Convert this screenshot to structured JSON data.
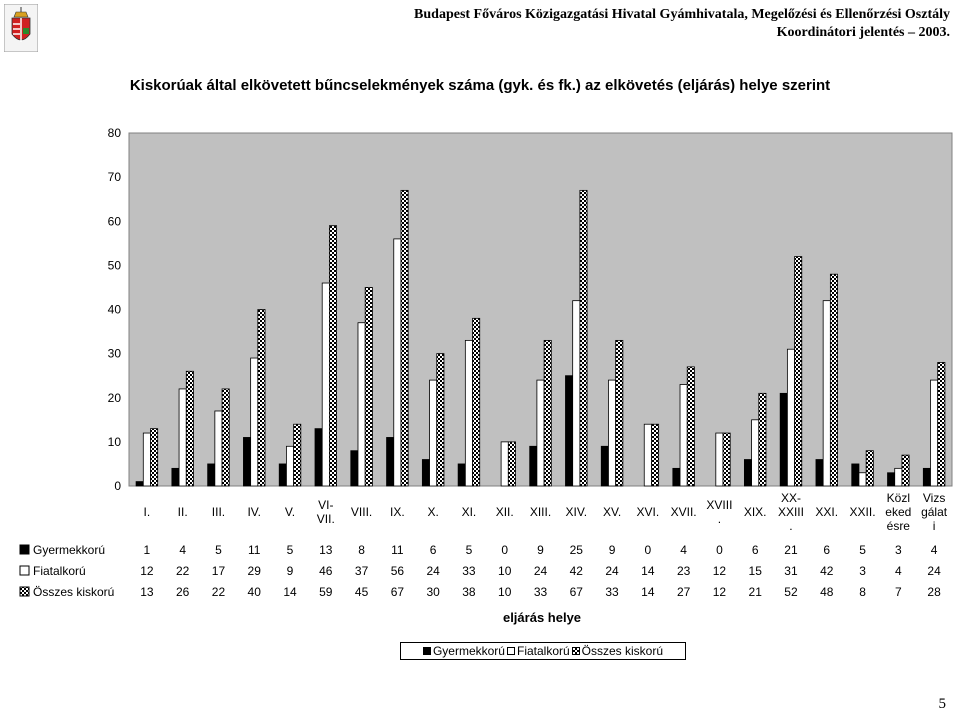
{
  "header": {
    "org_line1": "Budapest Főváros Közigazgatási Hivatal Gyámhivatala, Megelőzési és Ellenőrzési Osztály",
    "org_line2": "Koordinátori jelentés – 2003."
  },
  "page_number": "5",
  "chart_data": {
    "type": "bar",
    "title": "Kiskorúak által elkövetett bűncselekmények száma (gyk. és fk.) az elkövetés (eljárás) helye szerint",
    "xlabel": "eljárás helye",
    "ylabel": "",
    "ylim": [
      0,
      80
    ],
    "yticks": [
      0,
      10,
      20,
      30,
      40,
      50,
      60,
      70,
      80
    ],
    "grid": false,
    "legend_position": "bottom",
    "categories": [
      "I.",
      "II.",
      "III.",
      "IV.",
      "V.",
      "VI-VII.",
      "VIII.",
      "IX.",
      "X.",
      "XI.",
      "XII.",
      "XIII.",
      "XIV.",
      "XV.",
      "XVI.",
      "XVII.",
      "XVIII.",
      "XIX.",
      "XX-XXIII.",
      "XXI.",
      "XXII.",
      "Közlekedésre",
      "Vizsgálati"
    ],
    "category_lines": [
      [
        "I."
      ],
      [
        "II."
      ],
      [
        "III."
      ],
      [
        "IV."
      ],
      [
        "V."
      ],
      [
        "VI-",
        "VII."
      ],
      [
        "VIII."
      ],
      [
        "IX."
      ],
      [
        "X."
      ],
      [
        "XI."
      ],
      [
        "XII."
      ],
      [
        "XIII."
      ],
      [
        "XIV."
      ],
      [
        "XV."
      ],
      [
        "XVI."
      ],
      [
        "XVII."
      ],
      [
        "XVIII",
        "."
      ],
      [
        "XIX."
      ],
      [
        "XX-",
        "XXIII",
        "."
      ],
      [
        "XXI."
      ],
      [
        "XXII."
      ],
      [
        "Közl",
        "eked",
        "ésre"
      ],
      [
        "Vizs",
        "gálat",
        "i"
      ]
    ],
    "series": [
      {
        "name": "Gyermekkorú",
        "pattern": "black",
        "values": [
          1,
          4,
          5,
          11,
          5,
          13,
          8,
          11,
          6,
          5,
          0,
          9,
          25,
          9,
          0,
          4,
          0,
          6,
          21,
          6,
          5,
          3,
          4
        ]
      },
      {
        "name": "Fiatalkorú",
        "pattern": "white",
        "values": [
          12,
          22,
          17,
          29,
          9,
          46,
          37,
          56,
          24,
          33,
          10,
          24,
          42,
          24,
          14,
          23,
          12,
          15,
          31,
          42,
          3,
          4,
          24
        ]
      },
      {
        "name": "Összes kiskorú",
        "pattern": "checker",
        "values": [
          13,
          26,
          22,
          40,
          14,
          59,
          45,
          67,
          30,
          38,
          10,
          33,
          67,
          33,
          14,
          27,
          12,
          21,
          52,
          48,
          8,
          7,
          28
        ]
      }
    ]
  },
  "colors": {
    "plot_bg": "#c0c0c0",
    "bar_dark": "#000000",
    "bar_light": "#ffffff"
  }
}
